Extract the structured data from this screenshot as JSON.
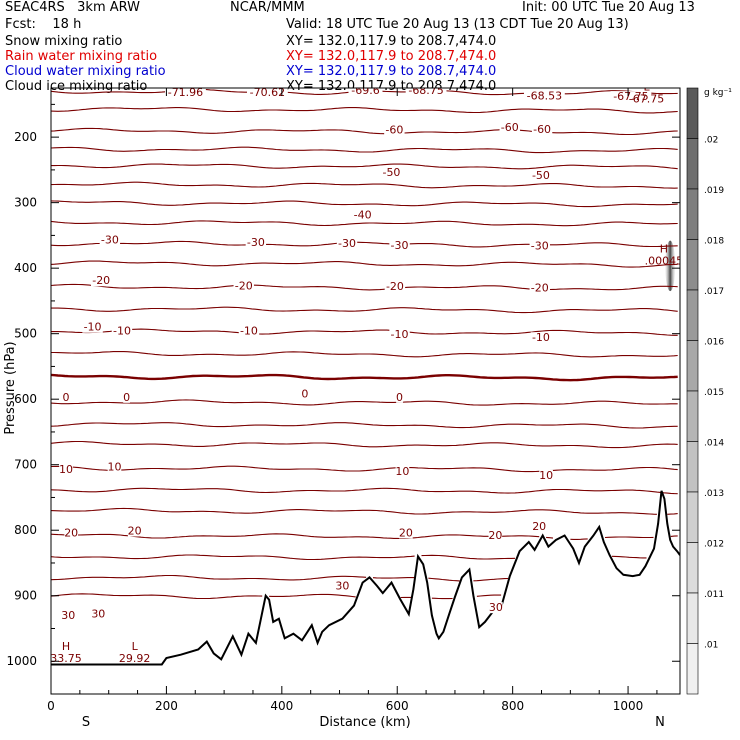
{
  "header": {
    "model": "SEAC4RS   3km ARW",
    "org": "NCAR/MMM",
    "init": "Init: 00 UTC Tue 20 Aug 13",
    "fcst": "Fcst:    18 h",
    "valid": "Valid: 18 UTC Tue 20 Aug 13 (13 CDT Tue 20 Aug 13)",
    "fields": [
      {
        "label": "Snow mixing ratio",
        "xy": "XY= 132.0,117.9 to 208.7,474.0",
        "color": "#000000"
      },
      {
        "label": "Rain water mixing ratio",
        "xy": "XY= 132.0,117.9 to 208.7,474.0",
        "color": "#e00000"
      },
      {
        "label": "Cloud water mixing ratio",
        "xy": "XY= 132.0,117.9 to 208.7,474.0",
        "color": "#0000d0"
      },
      {
        "label": "Cloud ice mixing ratio",
        "xy": "XY= 132.0,117.9 to 208.7,474.0",
        "color": "#000000"
      }
    ]
  },
  "chart_data": {
    "type": "line",
    "xlabel": "Distance (km)",
    "ylabel": "Pressure (hPa)",
    "xlim": [
      0,
      1090
    ],
    "ylim": [
      1050,
      125
    ],
    "x_ticks": [
      0,
      200,
      400,
      600,
      800,
      1000
    ],
    "y_ticks": [
      200,
      300,
      400,
      500,
      600,
      700,
      800,
      900,
      1000
    ],
    "x_end_labels": {
      "left": "S",
      "right": "N"
    },
    "isotherm_color": "#7a0000",
    "terrain_color": "#000000",
    "isotherms": [
      {
        "p": 130,
        "label": null
      },
      {
        "p": 157,
        "label": "-60"
      },
      {
        "p": 190,
        "label": null
      },
      {
        "p": 218,
        "label": "-50"
      },
      {
        "p": 243,
        "label": "-40"
      },
      {
        "p": 272,
        "label": "-30"
      },
      {
        "p": 300,
        "label": null
      },
      {
        "p": 330,
        "label": "-20"
      },
      {
        "p": 362,
        "label": null
      },
      {
        "p": 392,
        "label": "-10"
      },
      {
        "p": 428,
        "label": null
      },
      {
        "p": 462,
        "label": "0"
      },
      {
        "p": 496,
        "label": null
      },
      {
        "p": 530,
        "label": "10"
      },
      {
        "p": 565,
        "label": "0",
        "bold": true
      },
      {
        "p": 604,
        "label": null
      },
      {
        "p": 638,
        "label": null
      },
      {
        "p": 668,
        "label": "10"
      },
      {
        "p": 705,
        "label": null
      },
      {
        "p": 738,
        "label": null
      },
      {
        "p": 770,
        "label": "20"
      },
      {
        "p": 808,
        "label": null
      },
      {
        "p": 840,
        "label": null
      },
      {
        "p": 872,
        "label": "30"
      },
      {
        "p": 900,
        "label": "30"
      }
    ],
    "contour_labels": [
      {
        "x": 233,
        "p": 136,
        "text": "-71.96"
      },
      {
        "x": 375,
        "p": 136,
        "text": "-70.62"
      },
      {
        "x": 545,
        "p": 133,
        "text": "-69.6"
      },
      {
        "x": 650,
        "p": 133,
        "text": "-68.75"
      },
      {
        "x": 855,
        "p": 141,
        "text": "-68.53"
      },
      {
        "x": 1005,
        "p": 142,
        "text": "-67.75"
      },
      {
        "x": 595,
        "p": 193,
        "text": "-60"
      },
      {
        "x": 795,
        "p": 189,
        "text": "-60"
      },
      {
        "x": 851,
        "p": 192,
        "text": "-60"
      },
      {
        "x": 590,
        "p": 258,
        "text": "-50"
      },
      {
        "x": 849,
        "p": 262,
        "text": "-50"
      },
      {
        "x": 540,
        "p": 323,
        "text": "-40"
      },
      {
        "x": 102,
        "p": 361,
        "text": "-30"
      },
      {
        "x": 355,
        "p": 365,
        "text": "-30"
      },
      {
        "x": 513,
        "p": 366,
        "text": "-30"
      },
      {
        "x": 604,
        "p": 369,
        "text": "-30"
      },
      {
        "x": 847,
        "p": 370,
        "text": "-30"
      },
      {
        "x": 87,
        "p": 423,
        "text": "-20"
      },
      {
        "x": 334,
        "p": 431,
        "text": "-20"
      },
      {
        "x": 596,
        "p": 432,
        "text": "-20"
      },
      {
        "x": 847,
        "p": 434,
        "text": "-20"
      },
      {
        "x": 72,
        "p": 494,
        "text": "-10"
      },
      {
        "x": 123,
        "p": 500,
        "text": "-10"
      },
      {
        "x": 343,
        "p": 500,
        "text": "-10"
      },
      {
        "x": 604,
        "p": 505,
        "text": "-10"
      },
      {
        "x": 849,
        "p": 510,
        "text": "-10"
      },
      {
        "x": 26,
        "p": 601,
        "text": "0"
      },
      {
        "x": 131,
        "p": 601,
        "text": "0"
      },
      {
        "x": 440,
        "p": 596,
        "text": "0"
      },
      {
        "x": 604,
        "p": 601,
        "text": "0"
      },
      {
        "x": 26,
        "p": 711,
        "text": "10"
      },
      {
        "x": 110,
        "p": 707,
        "text": "10"
      },
      {
        "x": 609,
        "p": 714,
        "text": "10"
      },
      {
        "x": 858,
        "p": 720,
        "text": "10"
      },
      {
        "x": 35,
        "p": 808,
        "text": "20"
      },
      {
        "x": 145,
        "p": 805,
        "text": "20"
      },
      {
        "x": 615,
        "p": 808,
        "text": "20"
      },
      {
        "x": 770,
        "p": 812,
        "text": "20"
      },
      {
        "x": 846,
        "p": 798,
        "text": "20"
      },
      {
        "x": 505,
        "p": 889,
        "text": "30"
      },
      {
        "x": 30,
        "p": 934,
        "text": "30"
      },
      {
        "x": 82,
        "p": 932,
        "text": "30"
      },
      {
        "x": 771,
        "p": 922,
        "text": "30"
      }
    ],
    "extrema": [
      {
        "x": 26,
        "p": 992,
        "kind": "H",
        "value": "33.75"
      },
      {
        "x": 145,
        "p": 992,
        "kind": "L",
        "value": "29.92"
      },
      {
        "x": 1032,
        "p": 138,
        "kind": "L",
        "value": "-67.75"
      },
      {
        "x": 1062,
        "p": 385,
        "kind": "H",
        "value": ".00045"
      }
    ],
    "terrain": {
      "x": [
        0,
        192,
        200,
        225,
        255,
        270,
        282,
        295,
        315,
        330,
        342,
        355,
        365,
        372,
        378,
        385,
        395,
        405,
        420,
        435,
        452,
        462,
        470,
        482,
        505,
        525,
        540,
        552,
        565,
        575,
        590,
        605,
        620,
        628,
        636,
        645,
        652,
        660,
        668,
        672,
        680,
        690,
        700,
        712,
        725,
        732,
        742,
        752,
        765,
        780,
        795,
        812,
        828,
        838,
        852,
        862,
        875,
        890,
        905,
        915,
        925,
        940,
        950,
        958,
        968,
        980,
        992,
        1008,
        1020,
        1030,
        1045,
        1052,
        1058,
        1063,
        1068,
        1073,
        1078,
        1085,
        1090
      ],
      "p": [
        1005,
        1005,
        995,
        990,
        982,
        970,
        988,
        997,
        962,
        990,
        958,
        972,
        930,
        900,
        906,
        940,
        935,
        965,
        958,
        968,
        945,
        972,
        955,
        945,
        935,
        915,
        880,
        872,
        885,
        896,
        880,
        905,
        928,
        890,
        840,
        852,
        880,
        930,
        958,
        965,
        955,
        928,
        902,
        872,
        860,
        900,
        948,
        940,
        925,
        918,
        870,
        832,
        818,
        830,
        808,
        825,
        815,
        808,
        828,
        850,
        825,
        808,
        795,
        818,
        838,
        858,
        868,
        870,
        868,
        855,
        828,
        790,
        740,
        752,
        790,
        815,
        825,
        832,
        838
      ]
    },
    "shaded_zone": {
      "x": 1073,
      "p_min": 358,
      "p_max": 435
    },
    "colorbar": {
      "unit": "g kg⁻¹",
      "labels": [
        ".02",
        ".019",
        ".018",
        ".017",
        ".016",
        ".015",
        ".014",
        ".013",
        ".012",
        ".011",
        ".01"
      ],
      "colors": [
        "#5a5a5a",
        "#6e6e6e",
        "#7e7e7e",
        "#8d8d8d",
        "#9a9a9a",
        "#a8a8a8",
        "#b5b5b5",
        "#c2c2c2",
        "#cfcfcf",
        "#dcdcdc",
        "#e8e8e8",
        "#f0f0f0"
      ]
    }
  }
}
